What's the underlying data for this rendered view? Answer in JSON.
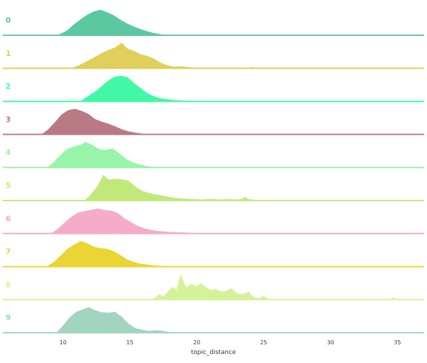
{
  "chart_data": {
    "type": "area",
    "xlabel": "topic_distance",
    "xlim": [
      5.5,
      37
    ],
    "x_ticks": [
      10,
      15,
      20,
      25,
      30,
      35
    ],
    "grid": false,
    "legend": "none",
    "series": [
      {
        "name": "0",
        "color": "#5cc8a2",
        "points": [
          [
            9.6,
            0
          ],
          [
            10.3,
            0.18
          ],
          [
            10.8,
            0.42
          ],
          [
            11.3,
            0.62
          ],
          [
            11.8,
            0.8
          ],
          [
            12.3,
            0.93
          ],
          [
            12.8,
            1.0
          ],
          [
            13.3,
            0.9
          ],
          [
            13.8,
            0.78
          ],
          [
            14.3,
            0.6
          ],
          [
            14.8,
            0.46
          ],
          [
            15.3,
            0.34
          ],
          [
            15.8,
            0.24
          ],
          [
            16.3,
            0.16
          ],
          [
            16.8,
            0.09
          ],
          [
            17.4,
            0.03
          ],
          [
            17.8,
            0
          ]
        ]
      },
      {
        "name": "1",
        "color": "#e0cf5a",
        "points": [
          [
            10.6,
            0
          ],
          [
            11.2,
            0.12
          ],
          [
            11.8,
            0.28
          ],
          [
            12.4,
            0.45
          ],
          [
            12.9,
            0.6
          ],
          [
            13.4,
            0.72
          ],
          [
            13.9,
            0.82
          ],
          [
            14.4,
            1.0
          ],
          [
            14.8,
            0.78
          ],
          [
            15.3,
            0.68
          ],
          [
            15.8,
            0.55
          ],
          [
            16.3,
            0.48
          ],
          [
            16.8,
            0.38
          ],
          [
            17.3,
            0.22
          ],
          [
            17.8,
            0.12
          ],
          [
            18.3,
            0.06
          ],
          [
            18.8,
            0.08
          ],
          [
            19.3,
            0.05
          ],
          [
            19.8,
            0.02
          ],
          [
            20.5,
            0
          ],
          [
            23.8,
            0
          ],
          [
            24.1,
            0.06
          ],
          [
            24.4,
            0
          ]
        ]
      },
      {
        "name": "2",
        "color": "#40f8a6",
        "points": [
          [
            11.3,
            0
          ],
          [
            11.8,
            0.18
          ],
          [
            12.3,
            0.35
          ],
          [
            12.8,
            0.55
          ],
          [
            13.3,
            0.78
          ],
          [
            13.8,
            0.95
          ],
          [
            14.3,
            1.0
          ],
          [
            14.8,
            0.95
          ],
          [
            15.3,
            0.72
          ],
          [
            15.8,
            0.52
          ],
          [
            16.3,
            0.32
          ],
          [
            16.8,
            0.2
          ],
          [
            17.3,
            0.12
          ],
          [
            17.8,
            0.08
          ],
          [
            18.3,
            0.05
          ],
          [
            19.0,
            0.03
          ],
          [
            19.8,
            0
          ]
        ]
      },
      {
        "name": "3",
        "color": "#b97a85",
        "points": [
          [
            8.4,
            0
          ],
          [
            8.9,
            0.2
          ],
          [
            9.4,
            0.48
          ],
          [
            9.9,
            0.78
          ],
          [
            10.4,
            0.95
          ],
          [
            10.9,
            1.0
          ],
          [
            11.4,
            0.92
          ],
          [
            11.9,
            0.8
          ],
          [
            12.4,
            0.6
          ],
          [
            12.9,
            0.5
          ],
          [
            13.4,
            0.42
          ],
          [
            13.9,
            0.32
          ],
          [
            14.4,
            0.2
          ],
          [
            14.9,
            0.12
          ],
          [
            15.4,
            0.07
          ],
          [
            15.9,
            0.03
          ],
          [
            16.4,
            0
          ]
        ]
      },
      {
        "name": "4",
        "color": "#98f4a8",
        "points": [
          [
            8.8,
            0
          ],
          [
            9.3,
            0.2
          ],
          [
            9.8,
            0.48
          ],
          [
            10.3,
            0.72
          ],
          [
            10.8,
            0.82
          ],
          [
            11.3,
            0.88
          ],
          [
            11.7,
            1.0
          ],
          [
            12.2,
            0.88
          ],
          [
            12.7,
            0.72
          ],
          [
            13.2,
            0.68
          ],
          [
            13.7,
            0.74
          ],
          [
            14.2,
            0.56
          ],
          [
            14.7,
            0.34
          ],
          [
            15.2,
            0.2
          ],
          [
            15.7,
            0.12
          ],
          [
            16.2,
            0.06
          ],
          [
            16.7,
            0.02
          ],
          [
            17.3,
            0
          ]
        ]
      },
      {
        "name": "5",
        "color": "#c1e97a",
        "points": [
          [
            11.6,
            0
          ],
          [
            12.1,
            0.25
          ],
          [
            12.6,
            0.58
          ],
          [
            13.0,
            1.0
          ],
          [
            13.4,
            0.82
          ],
          [
            13.9,
            0.85
          ],
          [
            14.4,
            0.83
          ],
          [
            14.9,
            0.78
          ],
          [
            15.4,
            0.55
          ],
          [
            15.9,
            0.38
          ],
          [
            16.4,
            0.3
          ],
          [
            16.9,
            0.24
          ],
          [
            17.4,
            0.2
          ],
          [
            17.9,
            0.14
          ],
          [
            18.4,
            0.1
          ],
          [
            18.9,
            0.08
          ],
          [
            19.4,
            0.06
          ],
          [
            19.9,
            0.05
          ],
          [
            20.4,
            0.04
          ],
          [
            20.9,
            0.06
          ],
          [
            21.4,
            0.05
          ],
          [
            21.9,
            0.04
          ],
          [
            22.4,
            0.06
          ],
          [
            22.9,
            0.04
          ],
          [
            23.3,
            0.05
          ],
          [
            23.6,
            0.14
          ],
          [
            23.9,
            0.05
          ],
          [
            24.4,
            0.02
          ],
          [
            25.0,
            0
          ]
        ]
      },
      {
        "name": "6",
        "color": "#f4acc8",
        "points": [
          [
            9.1,
            0
          ],
          [
            9.6,
            0.18
          ],
          [
            10.1,
            0.42
          ],
          [
            10.6,
            0.65
          ],
          [
            11.1,
            0.82
          ],
          [
            11.6,
            0.88
          ],
          [
            12.1,
            0.92
          ],
          [
            12.6,
            0.98
          ],
          [
            13.1,
            0.92
          ],
          [
            13.6,
            0.9
          ],
          [
            14.1,
            0.8
          ],
          [
            14.6,
            0.6
          ],
          [
            15.1,
            0.44
          ],
          [
            15.6,
            0.3
          ],
          [
            16.1,
            0.2
          ],
          [
            16.6,
            0.14
          ],
          [
            17.1,
            0.1
          ],
          [
            17.6,
            0.08
          ],
          [
            18.1,
            0.06
          ],
          [
            18.6,
            0.05
          ],
          [
            19.1,
            0.04
          ],
          [
            19.6,
            0.03
          ],
          [
            20.2,
            0
          ]
        ]
      },
      {
        "name": "7",
        "color": "#ead535",
        "points": [
          [
            8.8,
            0
          ],
          [
            9.3,
            0.18
          ],
          [
            9.8,
            0.42
          ],
          [
            10.3,
            0.68
          ],
          [
            10.8,
            0.85
          ],
          [
            11.3,
            1.0
          ],
          [
            11.8,
            0.92
          ],
          [
            12.3,
            0.78
          ],
          [
            12.8,
            0.72
          ],
          [
            13.3,
            0.7
          ],
          [
            13.8,
            0.6
          ],
          [
            14.3,
            0.45
          ],
          [
            14.8,
            0.28
          ],
          [
            15.3,
            0.18
          ],
          [
            15.8,
            0.12
          ],
          [
            16.3,
            0.08
          ],
          [
            16.8,
            0.05
          ],
          [
            17.3,
            0.03
          ],
          [
            18.0,
            0
          ]
        ]
      },
      {
        "name": "8",
        "color": "#d4f398",
        "points": [
          [
            16.6,
            0
          ],
          [
            16.9,
            0.08
          ],
          [
            17.2,
            0.22
          ],
          [
            17.5,
            0.12
          ],
          [
            17.9,
            0.35
          ],
          [
            18.2,
            0.5
          ],
          [
            18.5,
            0.4
          ],
          [
            18.8,
            1.0
          ],
          [
            19.2,
            0.48
          ],
          [
            19.6,
            0.62
          ],
          [
            20.0,
            0.52
          ],
          [
            20.3,
            0.66
          ],
          [
            20.7,
            0.48
          ],
          [
            21.0,
            0.38
          ],
          [
            21.4,
            0.42
          ],
          [
            21.8,
            0.32
          ],
          [
            22.2,
            0.34
          ],
          [
            22.6,
            0.45
          ],
          [
            23.0,
            0.24
          ],
          [
            23.5,
            0.22
          ],
          [
            23.9,
            0.32
          ],
          [
            24.2,
            0.12
          ],
          [
            24.6,
            0.06
          ],
          [
            25.0,
            0.14
          ],
          [
            25.3,
            0.06
          ],
          [
            25.7,
            0
          ],
          [
            34.5,
            0
          ],
          [
            34.7,
            0.1
          ],
          [
            34.9,
            0
          ]
        ]
      },
      {
        "name": "9",
        "color": "#a2d5bf",
        "points": [
          [
            9.5,
            0
          ],
          [
            10.0,
            0.28
          ],
          [
            10.5,
            0.6
          ],
          [
            11.0,
            0.82
          ],
          [
            11.5,
            0.92
          ],
          [
            11.9,
            1.0
          ],
          [
            12.4,
            0.88
          ],
          [
            12.9,
            0.8
          ],
          [
            13.4,
            0.78
          ],
          [
            13.9,
            0.82
          ],
          [
            14.4,
            0.62
          ],
          [
            14.9,
            0.36
          ],
          [
            15.4,
            0.18
          ],
          [
            15.9,
            0.12
          ],
          [
            16.4,
            0.07
          ],
          [
            16.9,
            0.1
          ],
          [
            17.4,
            0.08
          ],
          [
            17.9,
            0.03
          ],
          [
            18.4,
            0
          ]
        ]
      }
    ]
  }
}
